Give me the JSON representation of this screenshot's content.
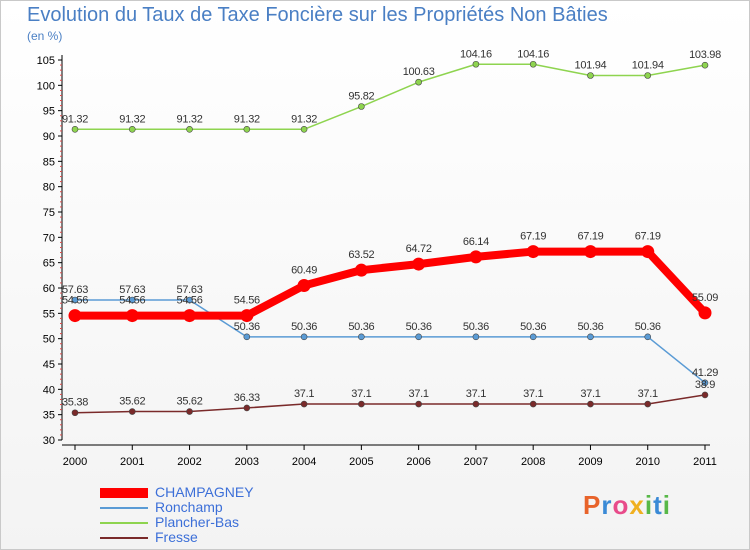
{
  "title": "Evolution du Taux de Taxe Foncière sur les Propriétés Non Bâties",
  "unit": "(en %)",
  "logo": "Proxiti",
  "colors": {
    "CHAMPAGNEY": "#ff0000",
    "Ronchamp": "#5a9bd5",
    "Plancher-Bas": "#8ed44f",
    "Fresse": "#7a2a2a",
    "axis": "#000000",
    "grid": "#dddddd",
    "tick_text": "#000000"
  },
  "chart_data": {
    "type": "line",
    "title": "Evolution du Taux de Taxe Foncière sur les Propriétés Non Bâties",
    "ylabel": "(en %)",
    "xlabel": "",
    "ylim": [
      30,
      105
    ],
    "yticks": [
      30,
      35,
      40,
      45,
      50,
      55,
      60,
      65,
      70,
      75,
      80,
      85,
      90,
      95,
      100,
      105
    ],
    "categories": [
      "2000",
      "2001",
      "2002",
      "2003",
      "2004",
      "2005",
      "2006",
      "2007",
      "2008",
      "2009",
      "2010",
      "2011"
    ],
    "series": [
      {
        "name": "CHAMPAGNEY",
        "values": [
          54.56,
          54.56,
          54.56,
          54.56,
          60.49,
          63.52,
          64.72,
          66.14,
          67.19,
          67.19,
          67.19,
          55.09
        ],
        "labels": [
          "54.56",
          "54.56",
          "54.56",
          "54.56",
          "60.49",
          "63.52",
          "64.72",
          "66.14",
          "67.19",
          "67.19",
          "67.19",
          "55.09"
        ]
      },
      {
        "name": "Ronchamp",
        "values": [
          57.63,
          57.63,
          57.63,
          50.36,
          50.36,
          50.36,
          50.36,
          50.36,
          50.36,
          50.36,
          50.36,
          41.29
        ],
        "labels": [
          "57.63",
          "57.63",
          "57.63",
          "50.36",
          "50.36",
          "50.36",
          "50.36",
          "50.36",
          "50.36",
          "50.36",
          "50.36",
          "41.29"
        ]
      },
      {
        "name": "Plancher-Bas",
        "values": [
          91.32,
          91.32,
          91.32,
          91.32,
          91.32,
          95.82,
          100.63,
          104.16,
          104.16,
          101.94,
          101.94,
          103.98
        ],
        "labels": [
          "91.32",
          "91.32",
          "91.32",
          "91.32",
          "91.32",
          "95.82",
          "100.63",
          "104.16",
          "104.16",
          "101.94",
          "101.94",
          "103.98"
        ]
      },
      {
        "name": "Fresse",
        "values": [
          35.38,
          35.62,
          35.62,
          36.33,
          37.1,
          37.1,
          37.1,
          37.1,
          37.1,
          37.1,
          37.1,
          38.9
        ],
        "labels": [
          "35.38",
          "35.62",
          "35.62",
          "36.33",
          "37.1",
          "37.1",
          "37.1",
          "37.1",
          "37.1",
          "37.1",
          "37.1",
          "38.9"
        ]
      }
    ],
    "legend": [
      "CHAMPAGNEY",
      "Ronchamp",
      "Plancher-Bas",
      "Fresse"
    ],
    "legend_position": "bottom-left",
    "grid": true
  }
}
